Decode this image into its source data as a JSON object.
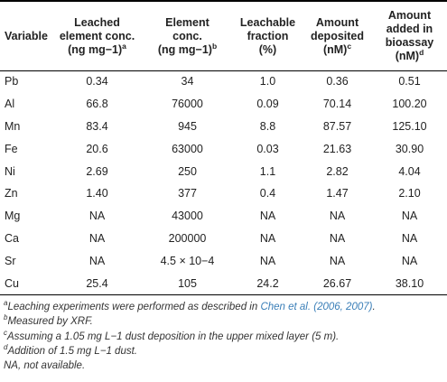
{
  "table": {
    "headers": [
      {
        "lines": [
          "Variable"
        ],
        "sup": ""
      },
      {
        "lines": [
          "Leached",
          "element conc.",
          "(ng mg−1)"
        ],
        "sup": "a"
      },
      {
        "lines": [
          "Element",
          "conc.",
          "(ng mg−1)"
        ],
        "sup": "b"
      },
      {
        "lines": [
          "Leachable",
          "fraction",
          "(%)"
        ],
        "sup": ""
      },
      {
        "lines": [
          "Amount",
          "deposited",
          "(nM)"
        ],
        "sup": "c"
      },
      {
        "lines": [
          "Amount",
          "added in",
          "bioassay (nM)"
        ],
        "sup": "d"
      }
    ],
    "rows": [
      [
        "Pb",
        "0.34",
        "34",
        "1.0",
        "0.36",
        "0.51"
      ],
      [
        "Al",
        "66.8",
        "76000",
        "0.09",
        "70.14",
        "100.20"
      ],
      [
        "Mn",
        "83.4",
        "945",
        "8.8",
        "87.57",
        "125.10"
      ],
      [
        "Fe",
        "20.6",
        "63000",
        "0.03",
        "21.63",
        "30.90"
      ],
      [
        "Ni",
        "2.69",
        "250",
        "1.1",
        "2.82",
        "4.04"
      ],
      [
        "Zn",
        "1.40",
        "377",
        "0.4",
        "1.47",
        "2.10"
      ],
      [
        "Mg",
        "NA",
        "43000",
        "NA",
        "NA",
        "NA"
      ],
      [
        "Ca",
        "NA",
        "200000",
        "NA",
        "NA",
        "NA"
      ],
      [
        "Sr",
        "NA",
        "4.5 × 10−4",
        "NA",
        "NA",
        "NA"
      ],
      [
        "Cu",
        "25.4",
        "105",
        "24.2",
        "26.67",
        "38.10"
      ]
    ]
  },
  "footnotes": {
    "a": {
      "mark": "a",
      "text": "Leaching experiments were performed as described in ",
      "link": "Chen et al. (2006, 2007)",
      "end": "."
    },
    "b": {
      "mark": "b",
      "text": "Measured by XRF."
    },
    "c": {
      "mark": "c",
      "text": "Assuming a 1.05 mg L−1 dust deposition in the upper mixed layer (5 m)."
    },
    "d": {
      "mark": "d",
      "text": "Addition of 1.5 mg L−1 dust."
    },
    "na": {
      "text": "NA, not available."
    }
  }
}
